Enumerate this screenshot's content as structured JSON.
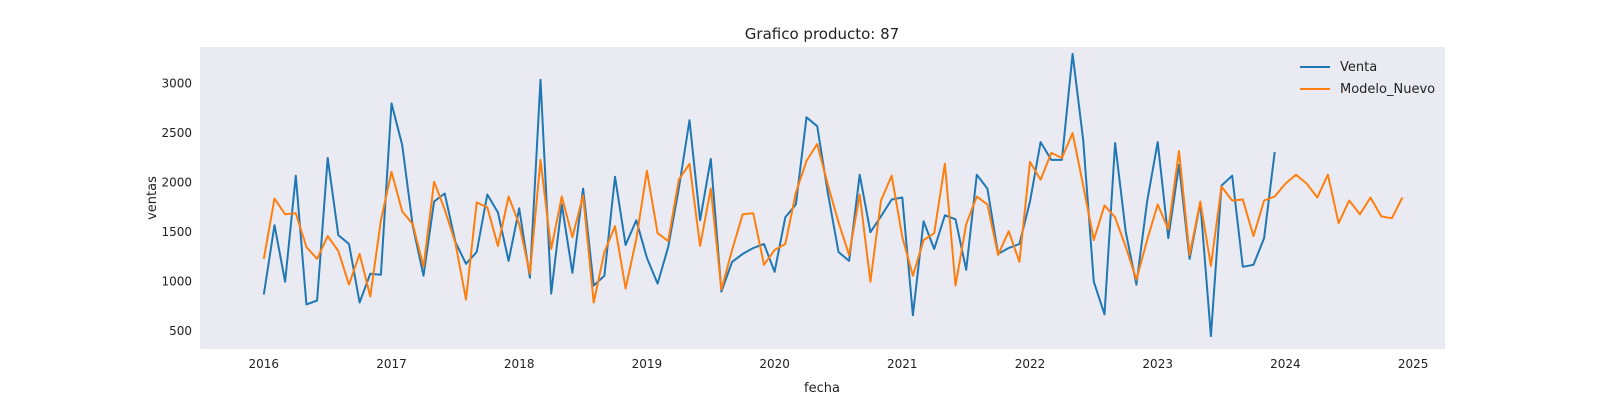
{
  "chart_data": {
    "type": "line",
    "title": "Grafico producto: 87",
    "xlabel": "fecha",
    "ylabel": "ventas",
    "x_start": "2016-01",
    "x_tick_labels": [
      "2016",
      "2017",
      "2018",
      "2019",
      "2020",
      "2021",
      "2022",
      "2023",
      "2024",
      "2025"
    ],
    "y_ticks": [
      500,
      1000,
      1500,
      2000,
      2500,
      3000
    ],
    "xlim": [
      "2015-07",
      "2025-04"
    ],
    "ylim": [
      320,
      3370
    ],
    "grid": false,
    "legend_position": "top-right",
    "series": [
      {
        "name": "Venta",
        "color": "#1f77b4",
        "values": [
          870,
          1570,
          1000,
          2070,
          770,
          810,
          2250,
          1470,
          1380,
          790,
          1080,
          1070,
          2800,
          2380,
          1560,
          1060,
          1810,
          1890,
          1400,
          1180,
          1300,
          1880,
          1700,
          1210,
          1740,
          1040,
          3040,
          880,
          1780,
          1090,
          1940,
          960,
          1060,
          2060,
          1370,
          1620,
          1240,
          980,
          1350,
          1940,
          2630,
          1620,
          2240,
          900,
          1200,
          1280,
          1340,
          1380,
          1100,
          1650,
          1780,
          2660,
          2570,
          1900,
          1300,
          1210,
          2080,
          1500,
          1660,
          1830,
          1850,
          660,
          1610,
          1330,
          1670,
          1630,
          1120,
          2080,
          1940,
          1280,
          1340,
          1380,
          1810,
          2410,
          2230,
          2230,
          3300,
          2430,
          1000,
          670,
          2400,
          1500,
          970,
          1810,
          2410,
          1440,
          2180,
          1230,
          1800,
          450,
          1970,
          2070,
          1150,
          1170,
          1440,
          2310
        ]
      },
      {
        "name": "Modelo_Nuevo",
        "color": "#ff7f0e",
        "values": [
          1230,
          1840,
          1680,
          1690,
          1350,
          1230,
          1460,
          1310,
          970,
          1280,
          850,
          1620,
          2110,
          1710,
          1580,
          1150,
          2010,
          1730,
          1390,
          820,
          1800,
          1750,
          1360,
          1860,
          1580,
          1080,
          2230,
          1330,
          1860,
          1450,
          1870,
          790,
          1300,
          1560,
          930,
          1430,
          2120,
          1490,
          1410,
          2030,
          2190,
          1360,
          1940,
          920,
          1320,
          1680,
          1690,
          1170,
          1320,
          1380,
          1900,
          2220,
          2390,
          1980,
          1600,
          1270,
          1880,
          1000,
          1820,
          2070,
          1450,
          1060,
          1420,
          1490,
          2190,
          960,
          1580,
          1860,
          1780,
          1270,
          1510,
          1200,
          2210,
          2030,
          2300,
          2250,
          2500,
          1970,
          1420,
          1770,
          1650,
          1350,
          1020,
          1420,
          1780,
          1530,
          2320,
          1270,
          1810,
          1160,
          1960,
          1820,
          1830,
          1460,
          1820,
          1860,
          1990,
          2080,
          1990,
          1850,
          2080,
          1590,
          1820,
          1680,
          1850,
          1660,
          1640,
          1850
        ]
      }
    ]
  }
}
